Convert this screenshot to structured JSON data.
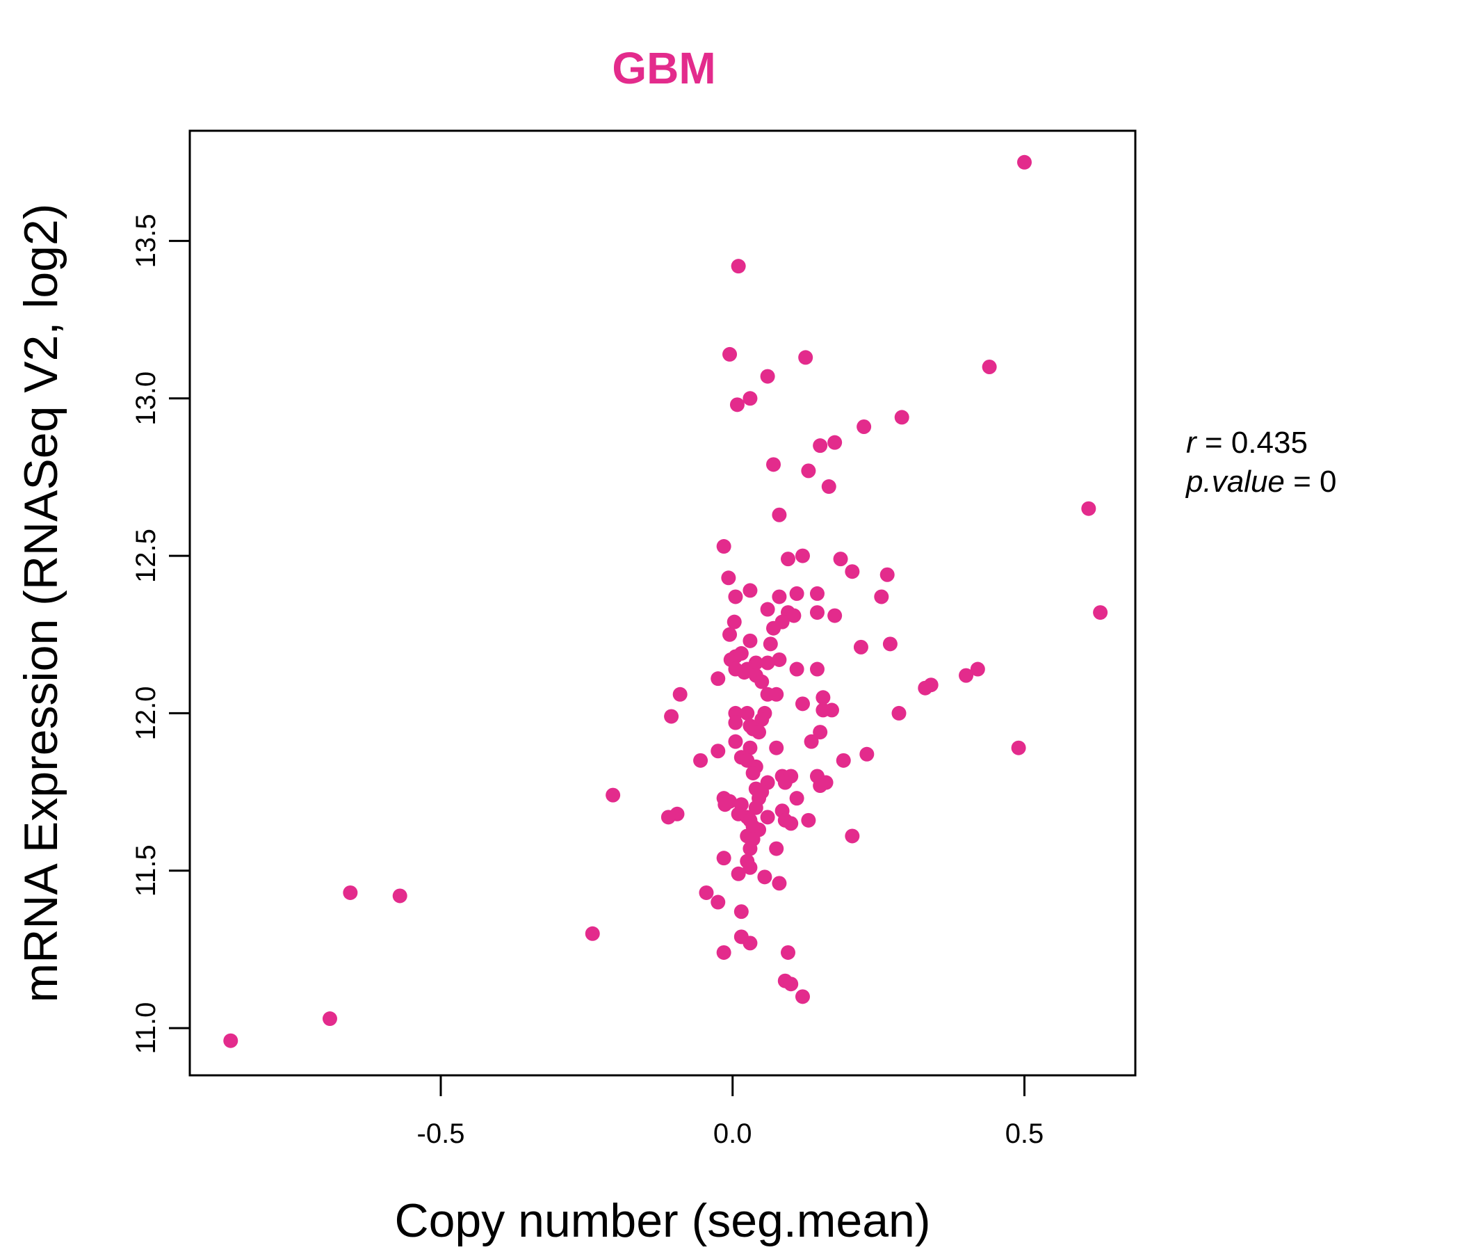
{
  "colors": {
    "accent": "#e32b8c",
    "axis": "#000000",
    "background": "#ffffff"
  },
  "stats": {
    "r_label": "r",
    "r_value": "0.435",
    "p_label": "p.value",
    "p_value": "0"
  },
  "chart_data": {
    "type": "scatter",
    "title": "GBM",
    "xlabel": "Copy number (seg.mean)",
    "ylabel": "mRNA Expression (RNASeq V2, log2)",
    "xlim": [
      -0.93,
      0.69
    ],
    "ylim": [
      10.85,
      13.85
    ],
    "xticks": [
      -0.5,
      0.0,
      0.5
    ],
    "xtick_labels": [
      "-0.5",
      "0.0",
      "0.5"
    ],
    "yticks": [
      11.0,
      11.5,
      12.0,
      12.5,
      13.0,
      13.5
    ],
    "ytick_labels": [
      "11.0",
      "11.5",
      "12.0",
      "12.5",
      "13.0",
      "13.5"
    ],
    "grid": false,
    "points": [
      [
        0.5,
        13.75
      ],
      [
        0.01,
        13.42
      ],
      [
        -0.005,
        13.14
      ],
      [
        0.125,
        13.13
      ],
      [
        0.44,
        13.1
      ],
      [
        0.06,
        13.07
      ],
      [
        0.03,
        13.0
      ],
      [
        0.008,
        12.98
      ],
      [
        0.29,
        12.94
      ],
      [
        0.225,
        12.91
      ],
      [
        0.15,
        12.85
      ],
      [
        0.175,
        12.86
      ],
      [
        0.07,
        12.79
      ],
      [
        0.13,
        12.77
      ],
      [
        0.165,
        12.72
      ],
      [
        0.61,
        12.65
      ],
      [
        0.08,
        12.63
      ],
      [
        -0.015,
        12.53
      ],
      [
        0.12,
        12.5
      ],
      [
        0.095,
        12.49
      ],
      [
        0.185,
        12.49
      ],
      [
        0.205,
        12.45
      ],
      [
        0.265,
        12.44
      ],
      [
        -0.007,
        12.43
      ],
      [
        0.03,
        12.39
      ],
      [
        0.145,
        12.38
      ],
      [
        0.11,
        12.38
      ],
      [
        0.255,
        12.37
      ],
      [
        0.08,
        12.37
      ],
      [
        0.005,
        12.37
      ],
      [
        0.06,
        12.33
      ],
      [
        0.095,
        12.32
      ],
      [
        0.105,
        12.31
      ],
      [
        0.145,
        12.32
      ],
      [
        0.175,
        12.31
      ],
      [
        0.63,
        12.32
      ],
      [
        0.085,
        12.29
      ],
      [
        0.07,
        12.27
      ],
      [
        0.003,
        12.29
      ],
      [
        0.27,
        12.22
      ],
      [
        0.22,
        12.21
      ],
      [
        0.065,
        12.22
      ],
      [
        0.03,
        12.23
      ],
      [
        -0.005,
        12.25
      ],
      [
        0.005,
        12.18
      ],
      [
        -0.003,
        12.17
      ],
      [
        0.015,
        12.19
      ],
      [
        0.08,
        12.17
      ],
      [
        0.06,
        12.16
      ],
      [
        0.04,
        12.16
      ],
      [
        0.025,
        12.14
      ],
      [
        0.02,
        12.13
      ],
      [
        0.005,
        12.14
      ],
      [
        0.11,
        12.14
      ],
      [
        0.145,
        12.14
      ],
      [
        0.42,
        12.14
      ],
      [
        0.4,
        12.12
      ],
      [
        0.04,
        12.12
      ],
      [
        0.05,
        12.1
      ],
      [
        -0.025,
        12.11
      ],
      [
        0.34,
        12.09
      ],
      [
        0.33,
        12.08
      ],
      [
        -0.09,
        12.06
      ],
      [
        0.06,
        12.06
      ],
      [
        0.075,
        12.06
      ],
      [
        0.155,
        12.05
      ],
      [
        0.12,
        12.03
      ],
      [
        0.155,
        12.01
      ],
      [
        0.17,
        12.01
      ],
      [
        0.005,
        12.0
      ],
      [
        0.025,
        12.0
      ],
      [
        0.055,
        12.0
      ],
      [
        0.285,
        12.0
      ],
      [
        -0.105,
        11.99
      ],
      [
        0.05,
        11.98
      ],
      [
        0.005,
        11.97
      ],
      [
        0.03,
        11.96
      ],
      [
        0.035,
        11.95
      ],
      [
        0.045,
        11.94
      ],
      [
        0.15,
        11.94
      ],
      [
        0.135,
        11.91
      ],
      [
        0.005,
        11.91
      ],
      [
        0.03,
        11.89
      ],
      [
        0.075,
        11.89
      ],
      [
        0.49,
        11.89
      ],
      [
        -0.025,
        11.88
      ],
      [
        0.23,
        11.87
      ],
      [
        0.015,
        11.86
      ],
      [
        -0.055,
        11.85
      ],
      [
        0.025,
        11.85
      ],
      [
        0.19,
        11.85
      ],
      [
        0.04,
        11.83
      ],
      [
        0.035,
        11.81
      ],
      [
        0.085,
        11.8
      ],
      [
        0.1,
        11.8
      ],
      [
        0.145,
        11.8
      ],
      [
        0.06,
        11.78
      ],
      [
        0.09,
        11.78
      ],
      [
        0.16,
        11.78
      ],
      [
        0.15,
        11.77
      ],
      [
        0.04,
        11.76
      ],
      [
        0.05,
        11.75
      ],
      [
        -0.205,
        11.74
      ],
      [
        -0.015,
        11.73
      ],
      [
        0.045,
        11.73
      ],
      [
        0.11,
        11.73
      ],
      [
        -0.005,
        11.72
      ],
      [
        -0.013,
        11.71
      ],
      [
        0.015,
        11.71
      ],
      [
        0.04,
        11.7
      ],
      [
        0.085,
        11.69
      ],
      [
        0.01,
        11.68
      ],
      [
        0.025,
        11.67
      ],
      [
        -0.095,
        11.68
      ],
      [
        -0.11,
        11.67
      ],
      [
        0.03,
        11.66
      ],
      [
        0.06,
        11.67
      ],
      [
        0.09,
        11.66
      ],
      [
        0.1,
        11.65
      ],
      [
        0.13,
        11.66
      ],
      [
        0.035,
        11.64
      ],
      [
        0.045,
        11.63
      ],
      [
        0.025,
        11.61
      ],
      [
        0.035,
        11.6
      ],
      [
        0.205,
        11.61
      ],
      [
        0.03,
        11.57
      ],
      [
        0.075,
        11.57
      ],
      [
        -0.015,
        11.54
      ],
      [
        0.025,
        11.53
      ],
      [
        0.03,
        11.51
      ],
      [
        0.01,
        11.49
      ],
      [
        0.055,
        11.48
      ],
      [
        0.08,
        11.46
      ],
      [
        -0.045,
        11.43
      ],
      [
        -0.655,
        11.43
      ],
      [
        -0.57,
        11.42
      ],
      [
        -0.025,
        11.4
      ],
      [
        0.015,
        11.37
      ],
      [
        -0.24,
        11.3
      ],
      [
        0.015,
        11.29
      ],
      [
        0.03,
        11.27
      ],
      [
        -0.015,
        11.24
      ],
      [
        0.095,
        11.24
      ],
      [
        0.09,
        11.15
      ],
      [
        0.1,
        11.14
      ],
      [
        0.12,
        11.1
      ],
      [
        -0.69,
        11.03
      ],
      [
        -0.86,
        10.96
      ]
    ]
  }
}
